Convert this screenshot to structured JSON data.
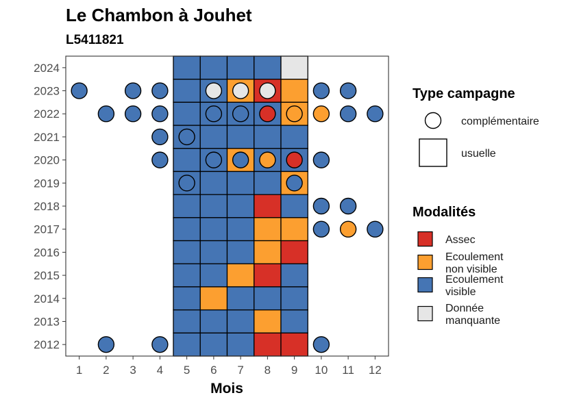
{
  "chart_data": {
    "type": "heatmap",
    "title": "Le Chambon à Jouhet",
    "subtitle": "L5411821",
    "xlabel": "Mois",
    "ylabel": "",
    "x_ticks": [
      1,
      2,
      3,
      4,
      5,
      6,
      7,
      8,
      9,
      10,
      11,
      12
    ],
    "y_ticks": [
      2012,
      2013,
      2014,
      2015,
      2016,
      2017,
      2018,
      2019,
      2020,
      2021,
      2022,
      2023,
      2024
    ],
    "xlim": [
      0.5,
      12.5
    ],
    "ylim": [
      2011.5,
      2024.5
    ],
    "modalites": {
      "legend_title": "Modalités",
      "items": [
        {
          "key": "assec",
          "label_lines": [
            "Assec"
          ],
          "color": "#d73027"
        },
        {
          "key": "ecoulement_non_visible",
          "label_lines": [
            "Ecoulement",
            "non visible"
          ],
          "color": "#fc9f30"
        },
        {
          "key": "ecoulement_visible",
          "label_lines": [
            "Ecoulement",
            "visible"
          ],
          "color": "#4575b4"
        },
        {
          "key": "donnee_manquante",
          "label_lines": [
            "Donnée",
            "manquante"
          ],
          "color": "#e6e6e6"
        }
      ]
    },
    "type_campagne": {
      "legend_title": "Type campagne",
      "items": [
        {
          "key": "complementaire",
          "label": "complémentaire",
          "shape": "circle"
        },
        {
          "key": "usuelle",
          "label": "usuelle",
          "shape": "square"
        }
      ]
    },
    "usuelle": [
      {
        "year": 2024,
        "months": [
          5,
          6,
          7,
          8,
          9
        ],
        "values": [
          "ecoulement_visible",
          "ecoulement_visible",
          "ecoulement_visible",
          "ecoulement_visible",
          "donnee_manquante"
        ]
      },
      {
        "year": 2023,
        "months": [
          5,
          6,
          7,
          8,
          9
        ],
        "values": [
          "ecoulement_visible",
          "ecoulement_visible",
          "ecoulement_non_visible",
          "assec",
          "ecoulement_non_visible"
        ]
      },
      {
        "year": 2022,
        "months": [
          5,
          6,
          7,
          8,
          9
        ],
        "values": [
          "ecoulement_visible",
          "ecoulement_visible",
          "ecoulement_visible",
          "ecoulement_visible",
          "ecoulement_non_visible"
        ]
      },
      {
        "year": 2021,
        "months": [
          5,
          6,
          7,
          8,
          9
        ],
        "values": [
          "ecoulement_visible",
          "ecoulement_visible",
          "ecoulement_visible",
          "ecoulement_visible",
          "ecoulement_visible"
        ]
      },
      {
        "year": 2020,
        "months": [
          5,
          6,
          7,
          8,
          9
        ],
        "values": [
          "ecoulement_visible",
          "ecoulement_visible",
          "ecoulement_non_visible",
          "ecoulement_visible",
          "ecoulement_visible"
        ]
      },
      {
        "year": 2019,
        "months": [
          5,
          6,
          7,
          8,
          9
        ],
        "values": [
          "ecoulement_visible",
          "ecoulement_visible",
          "ecoulement_visible",
          "ecoulement_visible",
          "ecoulement_non_visible"
        ]
      },
      {
        "year": 2018,
        "months": [
          5,
          6,
          7,
          8,
          9
        ],
        "values": [
          "ecoulement_visible",
          "ecoulement_visible",
          "ecoulement_visible",
          "assec",
          "ecoulement_visible"
        ]
      },
      {
        "year": 2017,
        "months": [
          5,
          6,
          7,
          8,
          9
        ],
        "values": [
          "ecoulement_visible",
          "ecoulement_visible",
          "ecoulement_visible",
          "ecoulement_non_visible",
          "ecoulement_non_visible"
        ]
      },
      {
        "year": 2016,
        "months": [
          5,
          6,
          7,
          8,
          9
        ],
        "values": [
          "ecoulement_visible",
          "ecoulement_visible",
          "ecoulement_visible",
          "ecoulement_non_visible",
          "assec"
        ]
      },
      {
        "year": 2015,
        "months": [
          5,
          6,
          7,
          8,
          9
        ],
        "values": [
          "ecoulement_visible",
          "ecoulement_visible",
          "ecoulement_non_visible",
          "assec",
          "ecoulement_visible"
        ]
      },
      {
        "year": 2014,
        "months": [
          5,
          6,
          7,
          8,
          9
        ],
        "values": [
          "ecoulement_visible",
          "ecoulement_non_visible",
          "ecoulement_visible",
          "ecoulement_visible",
          "ecoulement_visible"
        ]
      },
      {
        "year": 2013,
        "months": [
          5,
          6,
          7,
          8,
          9
        ],
        "values": [
          "ecoulement_visible",
          "ecoulement_visible",
          "ecoulement_visible",
          "ecoulement_non_visible",
          "ecoulement_visible"
        ]
      },
      {
        "year": 2012,
        "months": [
          5,
          6,
          7,
          8,
          9
        ],
        "values": [
          "ecoulement_visible",
          "ecoulement_visible",
          "ecoulement_visible",
          "assec",
          "assec"
        ]
      }
    ],
    "complementaire": [
      {
        "year": 2023,
        "month": 1,
        "value": "ecoulement_visible"
      },
      {
        "year": 2023,
        "month": 3,
        "value": "ecoulement_visible"
      },
      {
        "year": 2023,
        "month": 4,
        "value": "ecoulement_visible"
      },
      {
        "year": 2023,
        "month": 6,
        "value": "donnee_manquante"
      },
      {
        "year": 2023,
        "month": 7,
        "value": "donnee_manquante"
      },
      {
        "year": 2023,
        "month": 8,
        "value": "donnee_manquante"
      },
      {
        "year": 2023,
        "month": 10,
        "value": "ecoulement_visible"
      },
      {
        "year": 2023,
        "month": 11,
        "value": "ecoulement_visible"
      },
      {
        "year": 2022,
        "month": 2,
        "value": "ecoulement_visible"
      },
      {
        "year": 2022,
        "month": 3,
        "value": "ecoulement_visible"
      },
      {
        "year": 2022,
        "month": 4,
        "value": "ecoulement_visible"
      },
      {
        "year": 2022,
        "month": 6,
        "value": "ecoulement_visible"
      },
      {
        "year": 2022,
        "month": 7,
        "value": "ecoulement_visible"
      },
      {
        "year": 2022,
        "month": 8,
        "value": "assec"
      },
      {
        "year": 2022,
        "month": 9,
        "value": "ecoulement_non_visible"
      },
      {
        "year": 2022,
        "month": 10,
        "value": "ecoulement_non_visible"
      },
      {
        "year": 2022,
        "month": 11,
        "value": "ecoulement_visible"
      },
      {
        "year": 2022,
        "month": 12,
        "value": "ecoulement_visible"
      },
      {
        "year": 2021,
        "month": 4,
        "value": "ecoulement_visible"
      },
      {
        "year": 2021,
        "month": 5,
        "value": "ecoulement_visible"
      },
      {
        "year": 2020,
        "month": 4,
        "value": "ecoulement_visible"
      },
      {
        "year": 2020,
        "month": 6,
        "value": "ecoulement_visible"
      },
      {
        "year": 2020,
        "month": 7,
        "value": "ecoulement_visible"
      },
      {
        "year": 2020,
        "month": 8,
        "value": "ecoulement_non_visible"
      },
      {
        "year": 2020,
        "month": 9,
        "value": "assec"
      },
      {
        "year": 2020,
        "month": 10,
        "value": "ecoulement_visible"
      },
      {
        "year": 2019,
        "month": 5,
        "value": "ecoulement_visible"
      },
      {
        "year": 2019,
        "month": 9,
        "value": "ecoulement_visible"
      },
      {
        "year": 2018,
        "month": 10,
        "value": "ecoulement_visible"
      },
      {
        "year": 2018,
        "month": 11,
        "value": "ecoulement_visible"
      },
      {
        "year": 2017,
        "month": 10,
        "value": "ecoulement_visible"
      },
      {
        "year": 2017,
        "month": 11,
        "value": "ecoulement_non_visible"
      },
      {
        "year": 2017,
        "month": 12,
        "value": "ecoulement_visible"
      },
      {
        "year": 2012,
        "month": 2,
        "value": "ecoulement_visible"
      },
      {
        "year": 2012,
        "month": 4,
        "value": "ecoulement_visible"
      },
      {
        "year": 2012,
        "month": 10,
        "value": "ecoulement_visible"
      }
    ]
  }
}
